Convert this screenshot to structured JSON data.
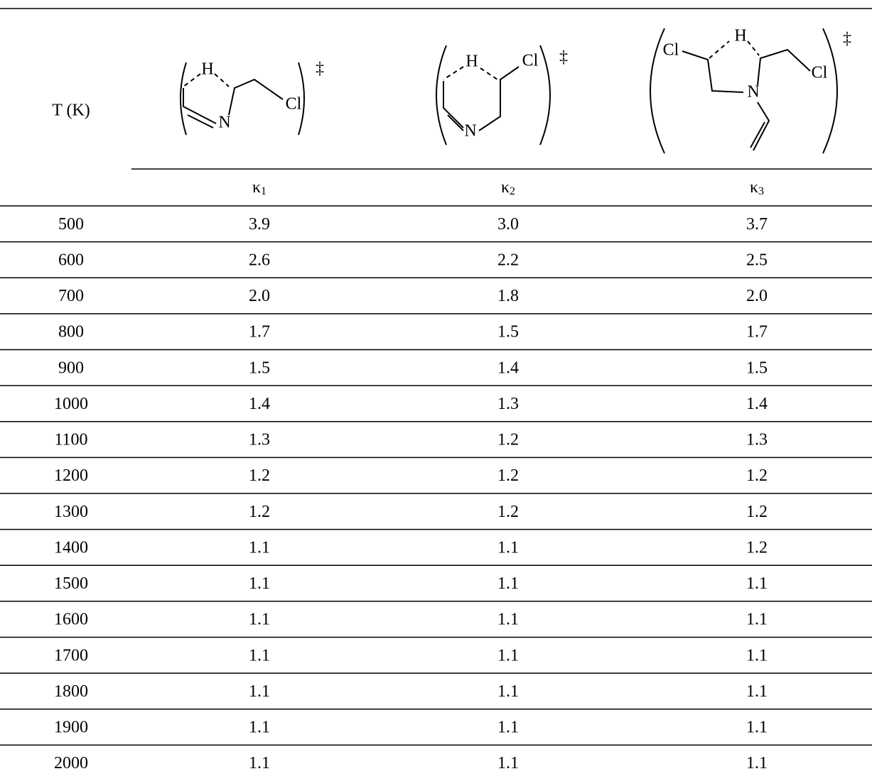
{
  "table": {
    "corner": "T (K)",
    "structures": [
      {
        "labels": [
          "H",
          "Cl",
          "N"
        ],
        "dagger": "‡"
      },
      {
        "labels": [
          "H",
          "Cl",
          "N"
        ],
        "dagger": "‡"
      },
      {
        "labels": [
          "Cl",
          "H",
          "N",
          "Cl"
        ],
        "dagger": "‡"
      }
    ],
    "columns": [
      {
        "symbol": "κ",
        "subscript": "1"
      },
      {
        "symbol": "κ",
        "subscript": "2"
      },
      {
        "symbol": "κ",
        "subscript": "3"
      }
    ],
    "rows": [
      [
        "500",
        "3.9",
        "3.0",
        "3.7"
      ],
      [
        "600",
        "2.6",
        "2.2",
        "2.5"
      ],
      [
        "700",
        "2.0",
        "1.8",
        "2.0"
      ],
      [
        "800",
        "1.7",
        "1.5",
        "1.7"
      ],
      [
        "900",
        "1.5",
        "1.4",
        "1.5"
      ],
      [
        "1000",
        "1.4",
        "1.3",
        "1.4"
      ],
      [
        "1100",
        "1.3",
        "1.2",
        "1.3"
      ],
      [
        "1200",
        "1.2",
        "1.2",
        "1.2"
      ],
      [
        "1300",
        "1.2",
        "1.2",
        "1.2"
      ],
      [
        "1400",
        "1.1",
        "1.1",
        "1.2"
      ],
      [
        "1500",
        "1.1",
        "1.1",
        "1.1"
      ],
      [
        "1600",
        "1.1",
        "1.1",
        "1.1"
      ],
      [
        "1700",
        "1.1",
        "1.1",
        "1.1"
      ],
      [
        "1800",
        "1.1",
        "1.1",
        "1.1"
      ],
      [
        "1900",
        "1.1",
        "1.1",
        "1.1"
      ],
      [
        "2000",
        "1.1",
        "1.1",
        "1.1"
      ]
    ]
  }
}
